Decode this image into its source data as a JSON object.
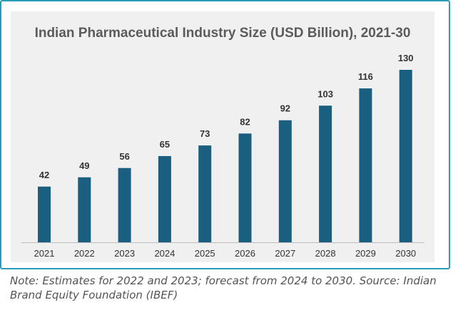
{
  "chart_data": {
    "type": "bar",
    "title": "Indian Pharmaceutical Industry Size (USD Billion), 2021-30",
    "categories": [
      "2021",
      "2022",
      "2023",
      "2024",
      "2025",
      "2026",
      "2027",
      "2028",
      "2029",
      "2030"
    ],
    "values": [
      42,
      49,
      56,
      65,
      73,
      82,
      92,
      103,
      116,
      130
    ],
    "xlabel": "",
    "ylabel": "",
    "ylim": [
      0,
      130
    ],
    "grid": false,
    "legend": "none",
    "bar_color": "#1a5f7f",
    "data_labels": true
  },
  "note": "Note: Estimates for 2022 and 2023; forecast from 2024 to 2030. Source: Indian Brand Equity Foundation (IBEF)",
  "colors": {
    "frame_border": "#2a9bb9",
    "panel_background": "#f0f0f0",
    "title_text": "#5b5b5b",
    "label_text": "#333333"
  }
}
